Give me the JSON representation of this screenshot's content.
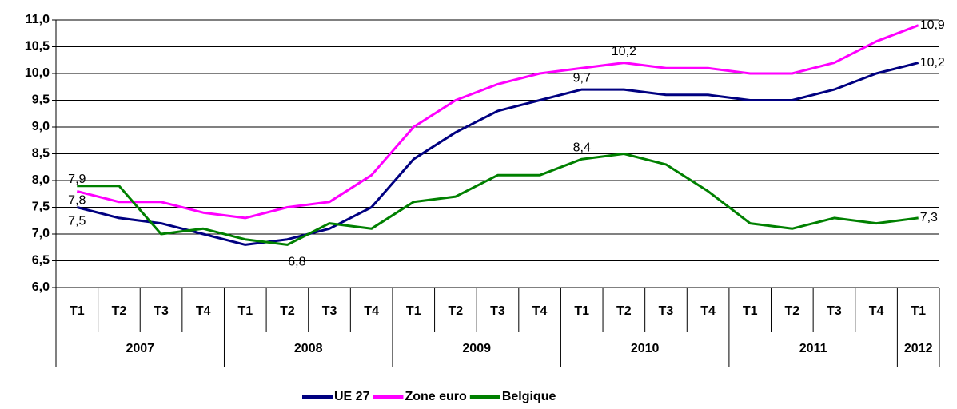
{
  "chart_data": {
    "type": "line",
    "groups": [
      {
        "label": "2007",
        "categories": [
          "T1",
          "T2",
          "T3",
          "T4"
        ]
      },
      {
        "label": "2008",
        "categories": [
          "T1",
          "T2",
          "T3",
          "T4"
        ]
      },
      {
        "label": "2009",
        "categories": [
          "T1",
          "T2",
          "T3",
          "T4"
        ]
      },
      {
        "label": "2010",
        "categories": [
          "T1",
          "T2",
          "T3",
          "T4"
        ]
      },
      {
        "label": "2011",
        "categories": [
          "T1",
          "T2",
          "T3",
          "T4"
        ]
      },
      {
        "label": "2012",
        "categories": [
          "T1"
        ]
      }
    ],
    "series": [
      {
        "name": "UE 27",
        "color": "#000080",
        "values": [
          7.5,
          7.3,
          7.2,
          7.0,
          6.8,
          6.9,
          7.1,
          7.5,
          8.4,
          8.9,
          9.3,
          9.5,
          9.7,
          9.7,
          9.6,
          9.6,
          9.5,
          9.5,
          9.7,
          10.0,
          10.2
        ],
        "value_labels": [
          "7,5",
          null,
          null,
          null,
          null,
          null,
          null,
          null,
          null,
          null,
          null,
          null,
          "9,7",
          null,
          null,
          null,
          null,
          null,
          null,
          null,
          "10,2"
        ]
      },
      {
        "name": "Zone euro",
        "color": "#ff00ff",
        "values": [
          7.8,
          7.6,
          7.6,
          7.4,
          7.3,
          7.5,
          7.6,
          8.1,
          9.0,
          9.5,
          9.8,
          10.0,
          10.1,
          10.2,
          10.1,
          10.1,
          10.0,
          10.0,
          10.2,
          10.6,
          10.9
        ],
        "value_labels": [
          "7,8",
          null,
          null,
          null,
          null,
          null,
          null,
          null,
          null,
          null,
          null,
          null,
          null,
          "10,2",
          null,
          null,
          null,
          null,
          null,
          null,
          "10,9"
        ]
      },
      {
        "name": "Belgique",
        "color": "#008000",
        "values": [
          7.9,
          7.9,
          7.0,
          7.1,
          6.9,
          6.8,
          7.2,
          7.1,
          7.6,
          7.7,
          8.1,
          8.1,
          8.4,
          8.5,
          8.3,
          7.8,
          7.2,
          7.1,
          7.3,
          7.2,
          7.3
        ],
        "value_labels": [
          "7,9",
          null,
          null,
          null,
          null,
          "6,8",
          null,
          null,
          null,
          null,
          null,
          null,
          "8,4",
          null,
          null,
          null,
          null,
          null,
          null,
          null,
          "7,3"
        ]
      }
    ],
    "ylim": [
      6.0,
      11.0
    ],
    "yticks": [
      {
        "value": 6.0,
        "label": "6,0"
      },
      {
        "value": 6.5,
        "label": "6,5"
      },
      {
        "value": 7.0,
        "label": "7,0"
      },
      {
        "value": 7.5,
        "label": "7,5"
      },
      {
        "value": 8.0,
        "label": "8,0"
      },
      {
        "value": 8.5,
        "label": "8,5"
      },
      {
        "value": 9.0,
        "label": "9,0"
      },
      {
        "value": 9.5,
        "label": "9,5"
      },
      {
        "value": 10.0,
        "label": "10,0"
      },
      {
        "value": 10.5,
        "label": "10,5"
      },
      {
        "value": 11.0,
        "label": "11,0"
      }
    ],
    "grid": true,
    "legend": "bottom"
  }
}
